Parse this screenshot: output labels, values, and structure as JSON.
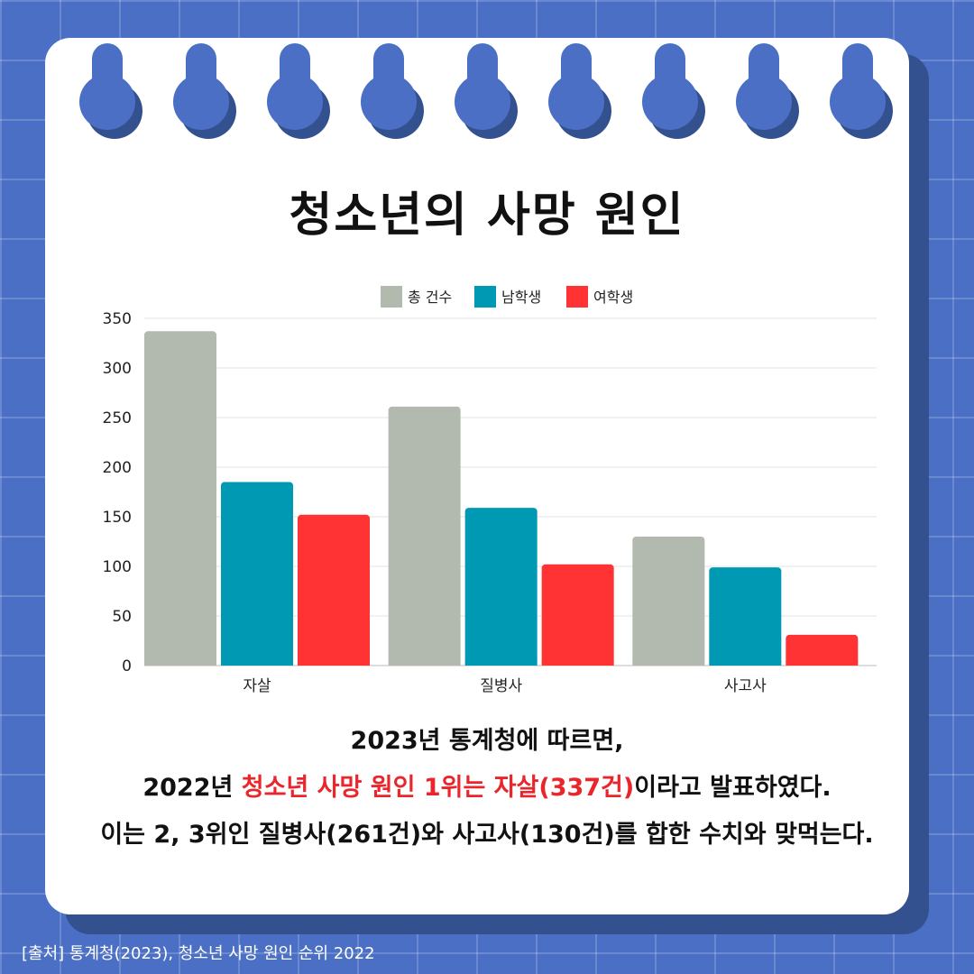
{
  "title": "청소년의 사망 원인",
  "chart_data": {
    "type": "bar",
    "categories": [
      "자살",
      "질병사",
      "사고사"
    ],
    "series": [
      {
        "name": "총 건수",
        "color": "#b2b9ae",
        "values": [
          337,
          261,
          130
        ]
      },
      {
        "name": "남학생",
        "color": "#0099b3",
        "values": [
          185,
          159,
          99
        ]
      },
      {
        "name": "여학생",
        "color": "#ff3333",
        "values": [
          152,
          102,
          31
        ]
      }
    ],
    "ylim": [
      0,
      350
    ],
    "yticks": [
      0,
      50,
      100,
      150,
      200,
      250,
      300,
      350
    ],
    "grid": true,
    "legend": "top-center"
  },
  "text": {
    "line1": "2023년 통계청에 따르면,",
    "line2_a": "2022년 ",
    "line2_highlight": "청소년 사망 원인 1위는 자살(337건)",
    "line2_b": "이라고 발표하였다.",
    "line3": "이는 2, 3위인 질병사(261건)와 사고사(130건)를 합한 수치와 맞먹는다."
  },
  "source": "[출처] 통계청(2023), 청소년 사망 원인 순위 2022",
  "colors": {
    "background": "#4a6fc4",
    "card": "#ffffff",
    "shadow": "#33508f",
    "highlight": "#e8262c"
  }
}
